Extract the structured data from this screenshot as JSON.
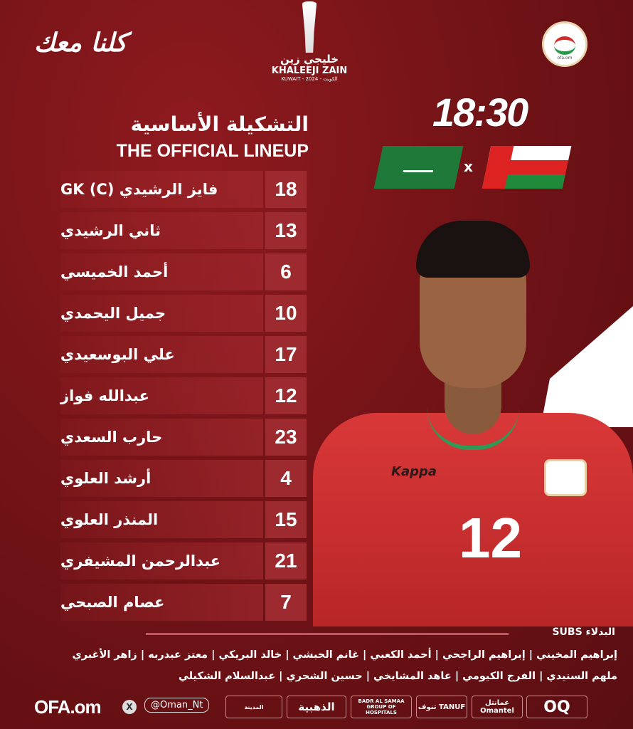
{
  "header": {
    "slogan": "كلنا معك",
    "tournament_ar": "خليجي زين",
    "tournament_en": "KHALEEJI ZAIN",
    "tournament_sub": "KUWAIT - 2024 - الكويت",
    "crest_text": "ofa.om"
  },
  "lineup": {
    "title_ar": "التشكيلة الأساسية",
    "title_en": "THE OFFICIAL LINEUP",
    "players": [
      {
        "number": "18",
        "name": "فايز الرشيدي GK (C)"
      },
      {
        "number": "13",
        "name": "ثاني الرشيدي"
      },
      {
        "number": "6",
        "name": "أحمد الخميسي"
      },
      {
        "number": "10",
        "name": "جميل اليحمدي"
      },
      {
        "number": "17",
        "name": "علي البوسعيدي"
      },
      {
        "number": "12",
        "name": "عبدالله فواز"
      },
      {
        "number": "23",
        "name": "حارب السعدي"
      },
      {
        "number": "4",
        "name": "أرشد العلوي"
      },
      {
        "number": "15",
        "name": "المنذر العلوي"
      },
      {
        "number": "21",
        "name": "عبدالرحمن المشيفري"
      },
      {
        "number": "7",
        "name": "عصام الصبحي"
      }
    ]
  },
  "match": {
    "time": "18:30",
    "vs": "x",
    "home_flag": "saudi-arabia-flag",
    "away_flag": "oman-flag"
  },
  "featured_player": {
    "shirt_number": "12",
    "shirt_brand": "Kappa",
    "shirt_color": "#d03030"
  },
  "subs": {
    "title": "البدلاء SUBS",
    "line1": "إبراهيم المخيني | إبراهيم الراجحي | أحمد الكعبي | غانم الحبشي | خالد البريكي | معتز عبدربه | زاهر الأغبري",
    "line2": "ملهم السنيدي | الفرج الكيومي | عاهد المشايخي | حسين الشحري | عبدالسلام الشكيلي"
  },
  "footer": {
    "site": "OFA.om",
    "handle": "@Oman_Nt",
    "sponsors": [
      "OQ",
      "عمانتل Omantel",
      "تنوف TANUF",
      "BADR AL SAMAA GROUP OF HOSPITALS",
      "الذهبية",
      "المدينة"
    ]
  },
  "colors": {
    "background": "#7a1418",
    "number_box": "#9c2a2e"
  }
}
